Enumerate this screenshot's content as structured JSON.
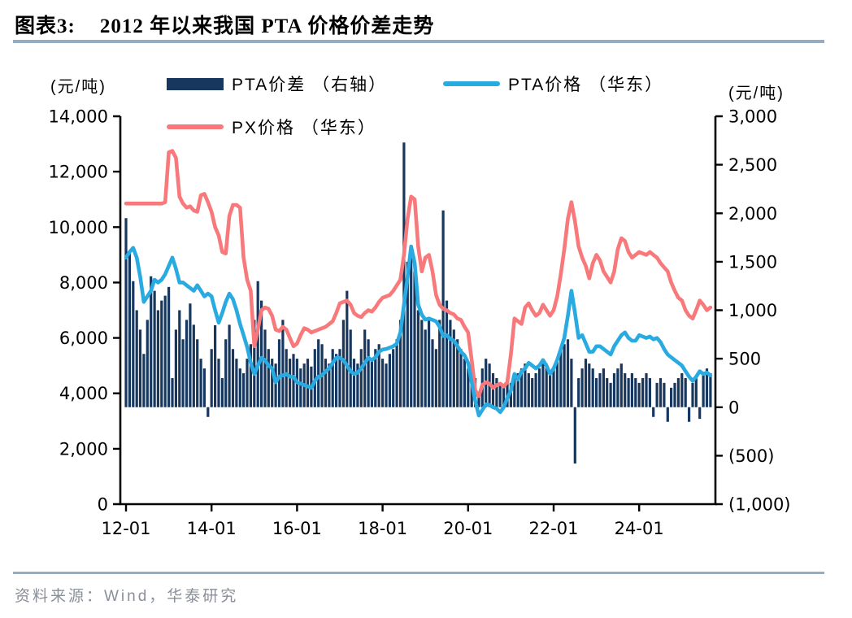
{
  "title": {
    "label": "图表3:",
    "text": "2012 年以来我国 PTA 价格价差走势"
  },
  "source": "资料来源：Wind，华泰研究",
  "colors": {
    "bar_navy": "#17375E",
    "line_red": "#F8797B",
    "line_blue": "#29ABE2",
    "rule_blue": "#96ACC3",
    "axis_black": "#000000",
    "source_gray": "#8a9098"
  },
  "legend": {
    "items": [
      {
        "label": "PTA价差 （右轴）",
        "swatch": "bar",
        "color": "#17375E"
      },
      {
        "label": "PTA价格 （华东）",
        "swatch": "line",
        "color": "#29ABE2"
      },
      {
        "label": "PX价格 （华东）",
        "swatch": "line",
        "color": "#F8797B"
      }
    ]
  },
  "chart_data": {
    "type": "combo-bar-line",
    "x_start": "2012-01",
    "x_freq": "monthly",
    "x_end": "2025-09",
    "x_tick_labels": [
      "12-01",
      "14-01",
      "16-01",
      "18-01",
      "20-01",
      "22-01",
      "24-01"
    ],
    "x_tick_year_offsets": [
      0,
      2,
      4,
      6,
      8,
      10,
      12
    ],
    "left_axis": {
      "unit": "(元/吨)",
      "min": 0,
      "max": 14000,
      "tick_values": [
        14000,
        12000,
        10000,
        8000,
        6000,
        4000,
        2000,
        0
      ],
      "tick_labels": [
        "14,000",
        "12,000",
        "10,000",
        "8,000",
        "6,000",
        "4,000",
        "2,000",
        "0"
      ]
    },
    "right_axis": {
      "unit": "(元/吨)",
      "min": -1000,
      "max": 3000,
      "tick_values": [
        3000,
        2500,
        2000,
        1500,
        1000,
        500,
        0,
        -500,
        -1000
      ],
      "tick_labels": [
        "3,000",
        "2,500",
        "2,000",
        "1,500",
        "1,000",
        "500",
        "0",
        "(500)",
        "(1,000)"
      ]
    },
    "series": [
      {
        "name": "PTA价差 （右轴）",
        "type": "bar",
        "axis": "right",
        "color": "#17375E",
        "values": [
          1950,
          1600,
          1300,
          1000,
          800,
          550,
          900,
          1350,
          1200,
          1000,
          1100,
          1150,
          1240,
          300,
          800,
          1000,
          700,
          900,
          1070,
          850,
          700,
          500,
          400,
          -100,
          600,
          845,
          500,
          300,
          700,
          850,
          600,
          500,
          400,
          350,
          500,
          650,
          900,
          1300,
          1100,
          800,
          600,
          500,
          450,
          700,
          900,
          600,
          500,
          550,
          500,
          400,
          450,
          500,
          420,
          600,
          700,
          650,
          500,
          450,
          600,
          550,
          600,
          900,
          1200,
          800,
          500,
          450,
          600,
          800,
          700,
          500,
          600,
          650,
          500,
          450,
          550,
          600,
          700,
          900,
          2730,
          1500,
          1550,
          1400,
          1000,
          900,
          800,
          900,
          700,
          600,
          900,
          2030,
          1100,
          900,
          800,
          700,
          600,
          500,
          400,
          500,
          300,
          150,
          400,
          500,
          450,
          350,
          300,
          250,
          200,
          300,
          250,
          300,
          350,
          400,
          450,
          350,
          300,
          350,
          400,
          500,
          450,
          350,
          400,
          500,
          600,
          650,
          700,
          500,
          -580,
          300,
          400,
          500,
          450,
          400,
          300,
          350,
          400,
          300,
          250,
          350,
          400,
          450,
          350,
          300,
          350,
          300,
          250,
          300,
          350,
          300,
          -100,
          250,
          300,
          250,
          -150,
          200,
          250,
          300,
          350,
          300,
          -150,
          250,
          300,
          -120,
          350,
          400,
          350
        ]
      },
      {
        "name": "PX价格 （华东）",
        "type": "line",
        "axis": "left",
        "color": "#F8797B",
        "values": [
          10850,
          10850,
          10850,
          10850,
          10850,
          10850,
          10850,
          10850,
          10850,
          10850,
          10850,
          10900,
          12700,
          12750,
          12500,
          11100,
          10850,
          10700,
          10750,
          10600,
          10550,
          11150,
          11200,
          10900,
          10550,
          10000,
          9700,
          9100,
          9050,
          10400,
          10800,
          10800,
          10700,
          8900,
          8100,
          7700,
          5700,
          6300,
          7000,
          7100,
          7050,
          6800,
          6300,
          6250,
          6400,
          6300,
          6000,
          5700,
          5800,
          6100,
          6350,
          6300,
          6200,
          6250,
          6300,
          6350,
          6400,
          6500,
          6600,
          6900,
          7250,
          7300,
          7350,
          7200,
          6900,
          6800,
          6750,
          6900,
          7000,
          6950,
          7100,
          7300,
          7450,
          7500,
          7550,
          7700,
          7900,
          8100,
          9000,
          10300,
          11100,
          11000,
          9300,
          8400,
          8900,
          9000,
          8400,
          7550,
          7200,
          7050,
          7000,
          6900,
          6850,
          6700,
          6650,
          6400,
          6200,
          5200,
          4100,
          3900,
          4300,
          4400,
          4350,
          4200,
          4300,
          4350,
          4250,
          4400,
          5400,
          6700,
          6600,
          6500,
          7100,
          7250,
          7000,
          6800,
          6900,
          7200,
          7000,
          6800,
          7000,
          7500,
          8300,
          9200,
          10300,
          10900,
          10200,
          9300,
          8900,
          8600,
          8150,
          8700,
          9000,
          8800,
          8400,
          8200,
          8000,
          8400,
          9200,
          9600,
          9500,
          9100,
          8900,
          9000,
          9100,
          9050,
          9000,
          9100,
          9000,
          8900,
          8700,
          8550,
          8400,
          8000,
          7700,
          7450,
          7350,
          7000,
          6800,
          6700,
          7000,
          7350,
          7200,
          7000,
          7100
        ]
      },
      {
        "name": "PTA价格 （华东）",
        "type": "line",
        "axis": "left",
        "color": "#29ABE2",
        "values": [
          8900,
          9100,
          9250,
          8900,
          8200,
          7300,
          7500,
          7700,
          8100,
          8000,
          8100,
          8300,
          8600,
          8900,
          8500,
          8000,
          8000,
          7900,
          7800,
          7700,
          7900,
          7700,
          7500,
          7600,
          7500,
          7000,
          6550,
          6900,
          7300,
          7600,
          7400,
          7000,
          6500,
          6100,
          5670,
          5100,
          4700,
          5000,
          5280,
          5200,
          5000,
          4900,
          4400,
          4600,
          4650,
          4700,
          4600,
          4600,
          4400,
          4350,
          4300,
          4250,
          4200,
          4450,
          4600,
          4650,
          4790,
          4900,
          5100,
          5280,
          5280,
          5200,
          5000,
          4800,
          4700,
          4750,
          4900,
          5100,
          5280,
          5200,
          5300,
          5500,
          5580,
          5600,
          5650,
          5700,
          5800,
          6200,
          7200,
          8200,
          9300,
          8700,
          7200,
          6840,
          6660,
          6700,
          6650,
          6600,
          6400,
          6070,
          6100,
          5960,
          5900,
          5700,
          5500,
          5370,
          5100,
          4400,
          3730,
          3200,
          3400,
          3600,
          3580,
          3500,
          3450,
          3320,
          3500,
          3820,
          4100,
          4700,
          4500,
          4790,
          4900,
          5100,
          5000,
          4900,
          5000,
          5200,
          5000,
          4700,
          4900,
          5200,
          5600,
          6000,
          6800,
          7700,
          6900,
          6000,
          6100,
          5800,
          5500,
          5500,
          5700,
          5700,
          5600,
          5500,
          5400,
          5700,
          5900,
          6100,
          6200,
          6000,
          5900,
          5900,
          6100,
          6050,
          6000,
          6050,
          5950,
          6000,
          5850,
          5600,
          5400,
          5300,
          5200,
          5100,
          5000,
          4800,
          4600,
          4450,
          4600,
          4800,
          4700,
          4750,
          4650
        ]
      }
    ]
  }
}
